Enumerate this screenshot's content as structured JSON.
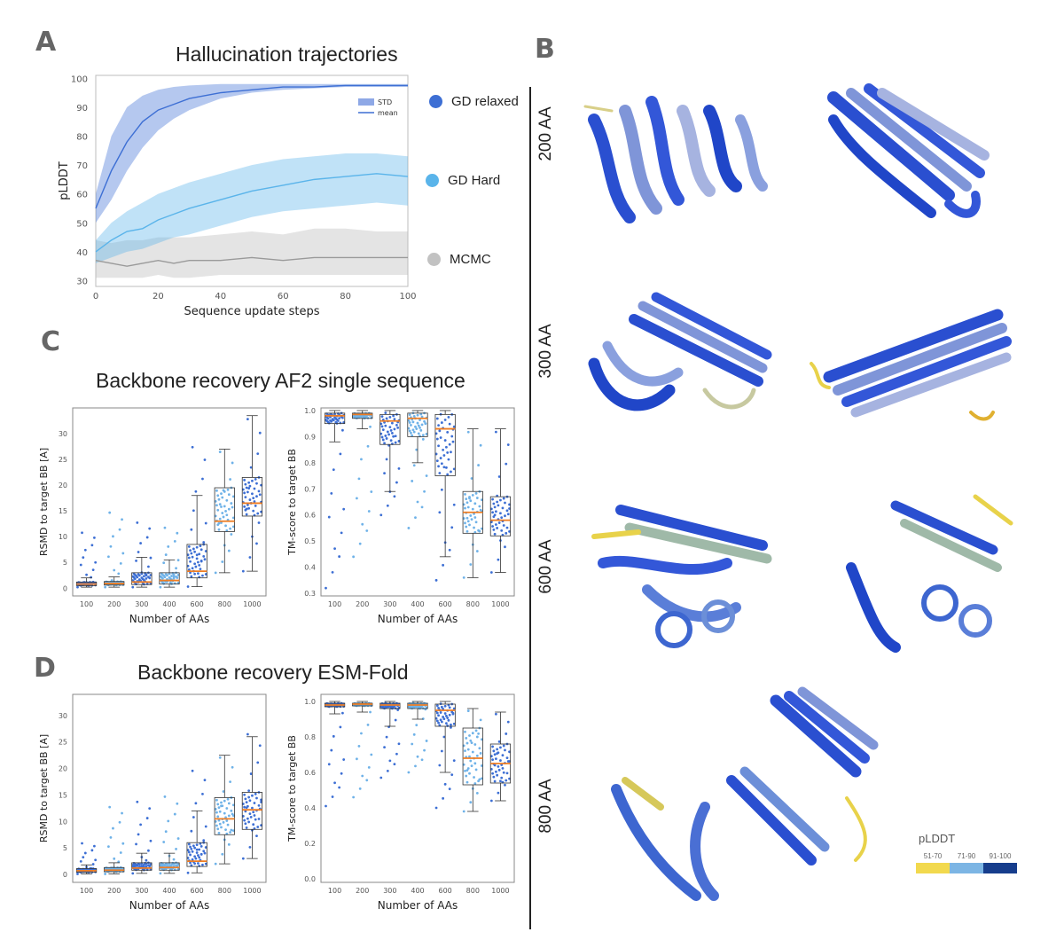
{
  "panels": {
    "a": {
      "letter": "A",
      "title": "Hallucination trajectories"
    },
    "b": {
      "letter": "B"
    },
    "c": {
      "letter": "C",
      "title": "Backbone recovery AF2 single sequence"
    },
    "d": {
      "letter": "D",
      "title": "Backbone recovery ESM-Fold"
    }
  },
  "legend_a": [
    {
      "label": "GD relaxed",
      "color": "#3d6fd4"
    },
    {
      "label": "GD Hard",
      "color": "#5ab4ea"
    },
    {
      "label": "MCMC",
      "color": "#c2c2c2"
    }
  ],
  "inset_legend": {
    "std": "STD",
    "mean": "mean"
  },
  "structure_labels": [
    "200 AA",
    "300 AA",
    "600 AA",
    "800 AA"
  ],
  "colorbar": {
    "title": "pLDDT",
    "segments": [
      {
        "label": "51-70",
        "color": "#f2d94e"
      },
      {
        "label": "71-90",
        "color": "#7cb5e4"
      },
      {
        "label": "91-100",
        "color": "#163d8c"
      }
    ]
  },
  "colors": {
    "relaxed": "#3d6fd4",
    "hard": "#5ab4ea",
    "mcmc": "#b8b8b8",
    "median": "#ef7d22"
  },
  "chart_data": [
    {
      "type": "line",
      "title": "",
      "xlabel": "Sequence update steps",
      "ylabel": "pLDDT",
      "xlim": [
        0,
        100
      ],
      "ylim": [
        28,
        101
      ],
      "xticks": [
        0,
        20,
        40,
        60,
        80,
        100
      ],
      "yticks": [
        30,
        40,
        50,
        60,
        70,
        80,
        90,
        100
      ],
      "x": [
        0,
        5,
        10,
        15,
        20,
        25,
        30,
        40,
        50,
        60,
        70,
        80,
        90,
        100
      ],
      "series": [
        {
          "name": "GD relaxed",
          "mean": [
            55,
            68,
            78,
            85,
            89,
            91,
            93,
            95,
            96,
            97,
            97,
            97.5,
            97.5,
            97.5
          ],
          "lower": [
            50,
            58,
            68,
            76,
            82,
            86,
            89,
            93,
            95,
            96,
            96.5,
            97,
            97,
            97
          ],
          "upper": [
            60,
            80,
            90,
            94,
            96,
            97,
            97.5,
            98,
            98,
            98,
            98,
            98,
            98,
            98
          ]
        },
        {
          "name": "GD Hard",
          "mean": [
            40,
            44,
            47,
            48,
            51,
            53,
            55,
            58,
            61,
            63,
            65,
            66,
            67,
            66
          ],
          "lower": [
            36,
            38,
            40,
            41,
            43,
            45,
            46,
            49,
            52,
            54,
            55,
            56,
            57,
            56
          ],
          "upper": [
            44,
            50,
            54,
            57,
            60,
            62,
            64,
            67,
            70,
            72,
            73,
            74,
            74,
            73
          ]
        },
        {
          "name": "MCMC",
          "mean": [
            37,
            36,
            35,
            36,
            37,
            36,
            37,
            37,
            38,
            37,
            38,
            38,
            38,
            38
          ],
          "lower": [
            31,
            31,
            31,
            31,
            32,
            31,
            31,
            32,
            32,
            32,
            32,
            32,
            32,
            32
          ],
          "upper": [
            44,
            43,
            44,
            44,
            45,
            45,
            45,
            46,
            47,
            46,
            48,
            48,
            47,
            47
          ]
        }
      ]
    },
    {
      "type": "box",
      "title": "",
      "xlabel": "Number of AAs",
      "ylabel": "RSMD to target BB [A]",
      "categories": [
        "100",
        "200",
        "300",
        "400",
        "600",
        "800",
        "1000"
      ],
      "ylim": [
        -1.5,
        35
      ],
      "yticks": [
        0,
        5,
        10,
        15,
        20,
        25,
        30
      ],
      "boxes": [
        {
          "q1": 0.5,
          "median": 0.8,
          "q3": 1.2,
          "wlo": 0.2,
          "whi": 2.0,
          "max": 11
        },
        {
          "q1": 0.6,
          "median": 0.9,
          "q3": 1.3,
          "wlo": 0.2,
          "whi": 2.2,
          "max": 15
        },
        {
          "q1": 0.7,
          "median": 1.2,
          "q3": 3.0,
          "wlo": 0.2,
          "whi": 6.0,
          "max": 13
        },
        {
          "q1": 0.8,
          "median": 1.5,
          "q3": 3.0,
          "wlo": 0.2,
          "whi": 5.5,
          "max": 12
        },
        {
          "q1": 2.0,
          "median": 3.3,
          "q3": 8.5,
          "wlo": 0.3,
          "whi": 18,
          "max": 28
        },
        {
          "q1": 11,
          "median": 13,
          "q3": 19.5,
          "wlo": 3,
          "whi": 27,
          "max": 27
        },
        {
          "q1": 14,
          "median": 16.5,
          "q3": 21.5,
          "wlo": 3.3,
          "whi": 33.5,
          "max": 33.5
        }
      ]
    },
    {
      "type": "box",
      "title": "",
      "xlabel": "Number of AAs",
      "ylabel": "TM-score to target BB",
      "categories": [
        "100",
        "200",
        "300",
        "400",
        "600",
        "800",
        "1000"
      ],
      "ylim": [
        0.29,
        1.01
      ],
      "yticks": [
        0.3,
        0.4,
        0.5,
        0.6,
        0.7,
        0.8,
        0.9,
        1.0
      ],
      "boxes": [
        {
          "q1": 0.95,
          "median": 0.98,
          "q3": 0.99,
          "wlo": 0.88,
          "whi": 1.0,
          "min": 0.32
        },
        {
          "q1": 0.97,
          "median": 0.985,
          "q3": 0.99,
          "wlo": 0.93,
          "whi": 1.0,
          "min": 0.44
        },
        {
          "q1": 0.87,
          "median": 0.96,
          "q3": 0.985,
          "wlo": 0.69,
          "whi": 1.0,
          "min": 0.6
        },
        {
          "q1": 0.9,
          "median": 0.97,
          "q3": 0.99,
          "wlo": 0.8,
          "whi": 1.0,
          "min": 0.55
        },
        {
          "q1": 0.75,
          "median": 0.93,
          "q3": 0.985,
          "wlo": 0.44,
          "whi": 1.0,
          "min": 0.35
        },
        {
          "q1": 0.53,
          "median": 0.61,
          "q3": 0.69,
          "wlo": 0.36,
          "whi": 0.93,
          "min": 0.36
        },
        {
          "q1": 0.52,
          "median": 0.58,
          "q3": 0.67,
          "wlo": 0.38,
          "whi": 0.93,
          "min": 0.38
        }
      ]
    },
    {
      "type": "box",
      "title": "",
      "xlabel": "Number of AAs",
      "ylabel": "RSMD to target BB [A]",
      "categories": [
        "100",
        "200",
        "300",
        "400",
        "600",
        "800",
        "1000"
      ],
      "ylim": [
        -1.5,
        34
      ],
      "yticks": [
        0,
        5,
        10,
        15,
        20,
        25,
        30
      ],
      "boxes": [
        {
          "q1": 0.4,
          "median": 0.7,
          "q3": 1.1,
          "wlo": 0.1,
          "whi": 1.8,
          "max": 6
        },
        {
          "q1": 0.5,
          "median": 0.8,
          "q3": 1.3,
          "wlo": 0.1,
          "whi": 2.2,
          "max": 13
        },
        {
          "q1": 0.8,
          "median": 1.2,
          "q3": 2.2,
          "wlo": 0.2,
          "whi": 4.0,
          "max": 14
        },
        {
          "q1": 0.8,
          "median": 1.3,
          "q3": 2.2,
          "wlo": 0.2,
          "whi": 4.0,
          "max": 15
        },
        {
          "q1": 1.5,
          "median": 2.5,
          "q3": 6.0,
          "wlo": 0.3,
          "whi": 12,
          "max": 20
        },
        {
          "q1": 7.5,
          "median": 10.5,
          "q3": 14.5,
          "wlo": 2,
          "whi": 22.5,
          "max": 22.5
        },
        {
          "q1": 8.5,
          "median": 12.2,
          "q3": 15.5,
          "wlo": 3,
          "whi": 26,
          "max": 27
        }
      ]
    },
    {
      "type": "box",
      "title": "",
      "xlabel": "Number of AAs",
      "ylabel": "TM-score to target BB",
      "categories": [
        "100",
        "200",
        "300",
        "400",
        "600",
        "800",
        "1000"
      ],
      "ylim": [
        -0.02,
        1.04
      ],
      "yticks": [
        0.0,
        0.2,
        0.4,
        0.6,
        0.8,
        1.0
      ],
      "boxes": [
        {
          "q1": 0.97,
          "median": 0.98,
          "q3": 0.99,
          "wlo": 0.93,
          "whi": 1.0,
          "min": 0.41
        },
        {
          "q1": 0.975,
          "median": 0.985,
          "q3": 0.99,
          "wlo": 0.94,
          "whi": 1.0,
          "min": 0.46
        },
        {
          "q1": 0.96,
          "median": 0.98,
          "q3": 0.99,
          "wlo": 0.86,
          "whi": 1.0,
          "min": 0.57
        },
        {
          "q1": 0.96,
          "median": 0.98,
          "q3": 0.99,
          "wlo": 0.9,
          "whi": 1.0,
          "min": 0.6
        },
        {
          "q1": 0.86,
          "median": 0.95,
          "q3": 0.985,
          "wlo": 0.6,
          "whi": 1.0,
          "min": 0.4
        },
        {
          "q1": 0.53,
          "median": 0.68,
          "q3": 0.85,
          "wlo": 0.38,
          "whi": 0.96,
          "min": 0.38
        },
        {
          "q1": 0.54,
          "median": 0.65,
          "q3": 0.76,
          "wlo": 0.44,
          "whi": 0.94,
          "min": 0.44
        }
      ]
    }
  ]
}
